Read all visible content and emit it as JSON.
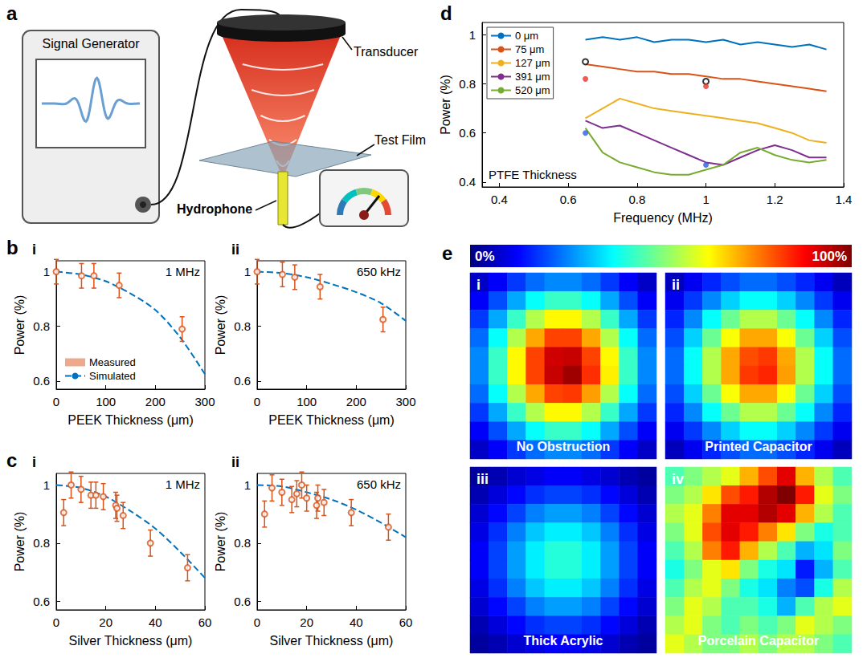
{
  "diagram": {
    "letter": "a",
    "labels": {
      "generator": "Signal Generator",
      "transducer": "Transducer",
      "film": "Test Film",
      "hydrophone": "Hydrophone"
    }
  },
  "chart_data": [
    {
      "type": "scatter",
      "letter": "b",
      "sub": "i",
      "annotation": "1 MHz",
      "xlabel": "PEEK Thickness (μm)",
      "ylabel": "Power (%)",
      "xlim": [
        0,
        300
      ],
      "xticks": [
        0,
        100,
        200,
        300
      ],
      "ylim": [
        0.57,
        1.04
      ],
      "yticks": [
        0.6,
        0.8,
        1
      ],
      "grid": false,
      "legend": "lower left",
      "series": [
        {
          "name": "Measured",
          "type": "scatter",
          "marker": "open circle",
          "color": "#d95319",
          "x": [
            0,
            51,
            76,
            127,
            254
          ],
          "values": [
            1.0,
            0.985,
            0.985,
            0.95,
            0.79
          ],
          "errors": [
            0.045,
            0.045,
            0.045,
            0.045,
            0.045
          ]
        },
        {
          "name": "Simulated",
          "type": "line",
          "line_style": "dashed",
          "color": "#0072bd",
          "x": [
            0,
            50,
            100,
            150,
            200,
            250,
            300
          ],
          "values": [
            1.0,
            0.99,
            0.965,
            0.92,
            0.86,
            0.76,
            0.625
          ]
        }
      ]
    },
    {
      "type": "scatter",
      "sub": "ii",
      "annotation": "650 kHz",
      "xlabel": "PEEK Thickness (μm)",
      "ylabel": "Power (%)",
      "xlim": [
        0,
        300
      ],
      "xticks": [
        0,
        100,
        200,
        300
      ],
      "ylim": [
        0.57,
        1.04
      ],
      "yticks": [
        0.6,
        0.8,
        1
      ],
      "grid": false,
      "series": [
        {
          "type": "scatter",
          "marker": "open circle",
          "color": "#d95319",
          "x": [
            0,
            51,
            76,
            127,
            254
          ],
          "values": [
            1.0,
            0.99,
            0.98,
            0.945,
            0.825
          ],
          "errors": [
            0.045,
            0.045,
            0.045,
            0.045,
            0.045
          ]
        },
        {
          "type": "line",
          "line_style": "dashed",
          "color": "#0072bd",
          "x": [
            0,
            50,
            100,
            150,
            200,
            250,
            300
          ],
          "values": [
            1.0,
            0.995,
            0.98,
            0.955,
            0.925,
            0.885,
            0.82
          ]
        }
      ]
    },
    {
      "type": "scatter",
      "letter": "c",
      "sub": "i",
      "annotation": "1 MHz",
      "xlabel": "Silver Thickness (μm)",
      "ylabel": "Power (%)",
      "xlim": [
        0,
        60
      ],
      "xticks": [
        0,
        20,
        40,
        60
      ],
      "ylim": [
        0.57,
        1.04
      ],
      "yticks": [
        0.6,
        0.8,
        1
      ],
      "grid": false,
      "series": [
        {
          "type": "scatter",
          "marker": "open circle",
          "color": "#d95319",
          "x": [
            3,
            6,
            10,
            14,
            16,
            19,
            24,
            24.5,
            27,
            38,
            53
          ],
          "values": [
            0.905,
            1.0,
            0.985,
            0.965,
            0.965,
            0.96,
            0.93,
            0.92,
            0.895,
            0.8,
            0.715
          ],
          "errors": [
            0.045,
            0.045,
            0.045,
            0.045,
            0.045,
            0.045,
            0.045,
            0.045,
            0.045,
            0.045,
            0.045
          ]
        },
        {
          "type": "line",
          "line_style": "dashed",
          "color": "#0072bd",
          "x": [
            0,
            10,
            20,
            30,
            40,
            50,
            60
          ],
          "values": [
            1.0,
            0.99,
            0.96,
            0.91,
            0.85,
            0.77,
            0.68
          ]
        }
      ]
    },
    {
      "type": "scatter",
      "sub": "ii",
      "annotation": "650 kHz",
      "xlabel": "Silver Thickness (μm)",
      "ylabel": "Power (%)",
      "xlim": [
        0,
        60
      ],
      "xticks": [
        0,
        20,
        40,
        60
      ],
      "ylim": [
        0.57,
        1.04
      ],
      "yticks": [
        0.6,
        0.8,
        1
      ],
      "grid": false,
      "series": [
        {
          "type": "scatter",
          "marker": "open circle",
          "color": "#d95319",
          "x": [
            3,
            6,
            10,
            14,
            16,
            18,
            20,
            24,
            24.5,
            27,
            38,
            53
          ],
          "values": [
            0.9,
            0.99,
            0.975,
            0.95,
            0.97,
            1.0,
            0.955,
            0.93,
            0.955,
            0.94,
            0.905,
            0.855
          ],
          "errors": [
            0.045,
            0.045,
            0.045,
            0.045,
            0.045,
            0.045,
            0.045,
            0.045,
            0.045,
            0.045,
            0.045,
            0.045
          ]
        },
        {
          "type": "line",
          "line_style": "dashed",
          "color": "#0072bd",
          "x": [
            0,
            10,
            20,
            30,
            40,
            50,
            60
          ],
          "values": [
            1.0,
            0.995,
            0.975,
            0.95,
            0.915,
            0.87,
            0.82
          ]
        }
      ]
    },
    {
      "type": "line",
      "letter": "d",
      "annotation": "PTFE Thickness",
      "xlabel": "Frequency (MHz)",
      "ylabel": "Power (%)",
      "xlim": [
        0.35,
        1.4
      ],
      "xticks": [
        0.4,
        0.6,
        0.8,
        1,
        1.2,
        1.4
      ],
      "ylim": [
        0.38,
        1.05
      ],
      "yticks": [
        0.4,
        0.6,
        0.8,
        1
      ],
      "grid": false,
      "legend": "upper left",
      "x": [
        0.65,
        0.7,
        0.75,
        0.8,
        0.85,
        0.9,
        0.95,
        1.0,
        1.05,
        1.1,
        1.15,
        1.2,
        1.25,
        1.3,
        1.35
      ],
      "series": [
        {
          "name": "0 μm",
          "type": "line",
          "line_style": "solid",
          "color": "#0072bd",
          "values": [
            0.98,
            0.99,
            0.98,
            0.99,
            0.97,
            0.98,
            0.98,
            0.97,
            0.98,
            0.96,
            0.97,
            0.96,
            0.95,
            0.96,
            0.94
          ]
        },
        {
          "name": "75 μm",
          "type": "line",
          "line_style": "solid",
          "color": "#d95319",
          "values": [
            0.88,
            0.87,
            0.86,
            0.85,
            0.85,
            0.84,
            0.84,
            0.83,
            0.82,
            0.82,
            0.81,
            0.8,
            0.79,
            0.78,
            0.77
          ]
        },
        {
          "name": "127 μm",
          "type": "line",
          "line_style": "solid",
          "color": "#edb120",
          "values": [
            0.66,
            0.7,
            0.74,
            0.72,
            0.7,
            0.69,
            0.68,
            0.67,
            0.66,
            0.65,
            0.64,
            0.62,
            0.6,
            0.57,
            0.56
          ]
        },
        {
          "name": "391 μm",
          "type": "line",
          "line_style": "solid",
          "color": "#7e2f8e",
          "values": [
            0.65,
            0.62,
            0.63,
            0.6,
            0.57,
            0.54,
            0.51,
            0.48,
            0.47,
            0.5,
            0.53,
            0.55,
            0.53,
            0.5,
            0.5
          ]
        },
        {
          "name": "520 μm",
          "type": "line",
          "line_style": "solid",
          "color": "#77ac30",
          "values": [
            0.62,
            0.52,
            0.48,
            0.46,
            0.44,
            0.43,
            0.43,
            0.45,
            0.47,
            0.52,
            0.54,
            0.51,
            0.49,
            0.48,
            0.49
          ]
        },
        {
          "type": "scatter",
          "marker": "open circle",
          "color": "#000000",
          "x": [
            0.65,
            1.0
          ],
          "values": [
            0.89,
            0.81
          ]
        },
        {
          "type": "scatter",
          "marker": "circle",
          "color": "#e8352a",
          "x": [
            0.65,
            1.0
          ],
          "values": [
            0.82,
            0.79
          ]
        },
        {
          "type": "scatter",
          "marker": "circle",
          "color": "#2a5ce8",
          "x": [
            0.65,
            1.0
          ],
          "values": [
            0.6,
            0.47
          ]
        }
      ]
    },
    {
      "type": "colorbar",
      "letter": "e",
      "range": [
        0,
        100
      ],
      "ticks": [
        {
          "value": 0,
          "label": "0%"
        },
        {
          "value": 100,
          "label": "100%"
        }
      ]
    },
    {
      "type": "heatmap",
      "sub": "i",
      "title": "No Obstruction",
      "tick_labels": false,
      "cells": [
        [
          7,
          12,
          18,
          23,
          26,
          26,
          23,
          18,
          12,
          7
        ],
        [
          12,
          20,
          29,
          38,
          43,
          43,
          38,
          29,
          20,
          12
        ],
        [
          18,
          29,
          43,
          55,
          63,
          63,
          55,
          43,
          29,
          18
        ],
        [
          23,
          38,
          55,
          71,
          81,
          81,
          71,
          55,
          38,
          23
        ],
        [
          26,
          43,
          63,
          81,
          92,
          93,
          81,
          63,
          43,
          26
        ],
        [
          26,
          43,
          63,
          81,
          93,
          97,
          83,
          64,
          43,
          26
        ],
        [
          23,
          38,
          55,
          71,
          81,
          82,
          72,
          55,
          38,
          23
        ],
        [
          18,
          29,
          43,
          55,
          63,
          63,
          55,
          43,
          29,
          18
        ],
        [
          12,
          20,
          29,
          38,
          43,
          43,
          38,
          29,
          20,
          12
        ],
        [
          7,
          12,
          18,
          23,
          26,
          26,
          23,
          18,
          12,
          7
        ]
      ]
    },
    {
      "type": "heatmap",
      "sub": "ii",
      "title": "Printed Capacitor",
      "tick_labels": false,
      "cells": [
        [
          6,
          11,
          16,
          20,
          23,
          23,
          20,
          16,
          11,
          6
        ],
        [
          11,
          18,
          26,
          33,
          38,
          38,
          33,
          26,
          18,
          11
        ],
        [
          16,
          26,
          38,
          48,
          55,
          55,
          48,
          38,
          26,
          16
        ],
        [
          20,
          33,
          48,
          62,
          71,
          71,
          62,
          48,
          33,
          20
        ],
        [
          23,
          38,
          55,
          71,
          80,
          82,
          71,
          55,
          38,
          23
        ],
        [
          23,
          38,
          55,
          71,
          82,
          84,
          72,
          55,
          38,
          23
        ],
        [
          20,
          33,
          48,
          62,
          71,
          71,
          62,
          48,
          33,
          20
        ],
        [
          16,
          26,
          38,
          48,
          55,
          55,
          48,
          38,
          26,
          16
        ],
        [
          11,
          18,
          26,
          33,
          38,
          38,
          33,
          26,
          18,
          11
        ],
        [
          6,
          11,
          16,
          20,
          23,
          23,
          20,
          16,
          11,
          6
        ]
      ]
    },
    {
      "type": "heatmap",
      "sub": "iii",
      "title": "Thick Acrylic",
      "tick_labels": false,
      "cells": [
        [
          3,
          5,
          8,
          10,
          12,
          12,
          10,
          8,
          5,
          3
        ],
        [
          5,
          9,
          13,
          17,
          19,
          19,
          17,
          13,
          9,
          5
        ],
        [
          8,
          13,
          19,
          25,
          28,
          28,
          25,
          19,
          13,
          8
        ],
        [
          10,
          17,
          25,
          32,
          36,
          36,
          32,
          25,
          17,
          10
        ],
        [
          12,
          19,
          28,
          36,
          41,
          41,
          36,
          28,
          19,
          12
        ],
        [
          12,
          19,
          28,
          36,
          41,
          41,
          36,
          28,
          19,
          12
        ],
        [
          10,
          17,
          25,
          32,
          36,
          36,
          32,
          25,
          17,
          10
        ],
        [
          8,
          13,
          19,
          25,
          28,
          28,
          25,
          19,
          13,
          8
        ],
        [
          5,
          9,
          13,
          17,
          19,
          19,
          17,
          13,
          9,
          5
        ],
        [
          3,
          5,
          8,
          10,
          12,
          12,
          10,
          8,
          5,
          3
        ]
      ]
    },
    {
      "type": "heatmap",
      "sub": "iv",
      "title": "Porcelain Capacitor",
      "tick_labels": false,
      "cells": [
        [
          45,
          50,
          55,
          60,
          70,
          80,
          90,
          70,
          55,
          45
        ],
        [
          50,
          55,
          65,
          80,
          85,
          95,
          100,
          85,
          60,
          50
        ],
        [
          55,
          60,
          75,
          90,
          90,
          95,
          90,
          70,
          55,
          45
        ],
        [
          50,
          60,
          80,
          90,
          85,
          75,
          65,
          50,
          40,
          45
        ],
        [
          45,
          55,
          75,
          85,
          70,
          55,
          45,
          30,
          35,
          50
        ],
        [
          40,
          50,
          60,
          65,
          50,
          40,
          35,
          15,
          30,
          45
        ],
        [
          45,
          55,
          60,
          50,
          40,
          35,
          25,
          20,
          40,
          55
        ],
        [
          50,
          60,
          55,
          45,
          45,
          40,
          30,
          45,
          55,
          60
        ],
        [
          55,
          60,
          50,
          45,
          50,
          45,
          50,
          60,
          55,
          50
        ],
        [
          60,
          55,
          50,
          50,
          55,
          50,
          55,
          55,
          50,
          45
        ]
      ]
    }
  ]
}
